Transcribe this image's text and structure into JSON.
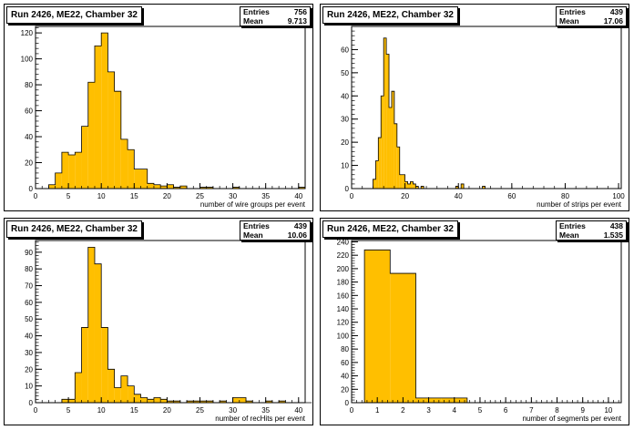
{
  "colors": {
    "fill": "#ffbf00",
    "frame": "#000000",
    "pad_bg": "#ffffff"
  },
  "stats_labels": {
    "entries": "Entries",
    "mean": "Mean"
  },
  "chart_data": [
    {
      "type": "bar",
      "title": "Run 2426, ME22, Chamber 32",
      "xlabel": "number of wire groups per event",
      "entries": "756",
      "mean": "9.713",
      "xlim": [
        0,
        41
      ],
      "ylim": [
        0,
        125
      ],
      "xticks": [
        0,
        5,
        10,
        15,
        20,
        25,
        30,
        35,
        40
      ],
      "yticks": [
        0,
        20,
        40,
        60,
        80,
        100,
        120
      ],
      "bin_edges_start": 2,
      "bin_width": 1,
      "values": [
        3,
        12,
        28,
        26,
        28,
        48,
        82,
        110,
        120,
        90,
        75,
        38,
        30,
        15,
        15,
        4,
        3,
        2,
        3,
        1,
        2,
        0,
        0,
        1,
        1,
        0,
        0,
        0,
        1,
        0,
        0,
        0,
        0,
        0,
        0,
        0,
        0,
        0,
        1
      ]
    },
    {
      "type": "bar",
      "title": "Run 2426, ME22, Chamber 32",
      "xlabel": "number of strips per event",
      "entries": "439",
      "mean": "17.06",
      "xlim": [
        0,
        101
      ],
      "ylim": [
        0,
        70
      ],
      "xticks": [
        0,
        20,
        40,
        60,
        80,
        100
      ],
      "yticks": [
        0,
        10,
        20,
        30,
        40,
        50,
        60
      ],
      "bin_edges_start": 8,
      "bin_width": 1,
      "values": [
        4,
        12,
        22,
        40,
        65,
        58,
        35,
        42,
        28,
        18,
        6,
        6,
        3,
        2,
        3,
        2,
        1,
        0,
        1,
        0,
        0,
        0,
        0,
        0,
        0,
        0,
        0,
        0,
        0,
        0,
        0,
        1,
        0,
        2,
        0,
        0,
        0,
        0,
        0,
        0,
        0,
        1
      ]
    },
    {
      "type": "bar",
      "title": "Run 2426, ME22, Chamber 32",
      "xlabel": "number of recHits per event",
      "entries": "439",
      "mean": "10.06",
      "xlim": [
        0,
        41
      ],
      "ylim": [
        0,
        97
      ],
      "xticks": [
        0,
        5,
        10,
        15,
        20,
        25,
        30,
        35,
        40
      ],
      "yticks": [
        0,
        10,
        20,
        30,
        40,
        50,
        60,
        70,
        80,
        90
      ],
      "bin_edges_start": 4,
      "bin_width": 1,
      "values": [
        2,
        2,
        18,
        45,
        93,
        83,
        45,
        20,
        9,
        16,
        10,
        5,
        3,
        2,
        3,
        2,
        1,
        1,
        0,
        1,
        1,
        1,
        1,
        0,
        1,
        0,
        3,
        3,
        1,
        0,
        0,
        1,
        0,
        1,
        0,
        0,
        0,
        0
      ]
    },
    {
      "type": "bar",
      "title": "Run 2426, ME22, Chamber 32",
      "xlabel": "number of segments per event",
      "entries": "438",
      "mean": "1.535",
      "xlim": [
        0,
        10.5
      ],
      "ylim": [
        0,
        242
      ],
      "xticks": [
        0,
        1,
        2,
        3,
        4,
        5,
        6,
        7,
        8,
        9,
        10
      ],
      "yticks": [
        0,
        20,
        40,
        60,
        80,
        100,
        120,
        140,
        160,
        180,
        200,
        220,
        240
      ],
      "bin_edges_start": 0.5,
      "bin_width": 1,
      "values": [
        228,
        193,
        7,
        7,
        0,
        0,
        0,
        0,
        0,
        0
      ]
    }
  ]
}
